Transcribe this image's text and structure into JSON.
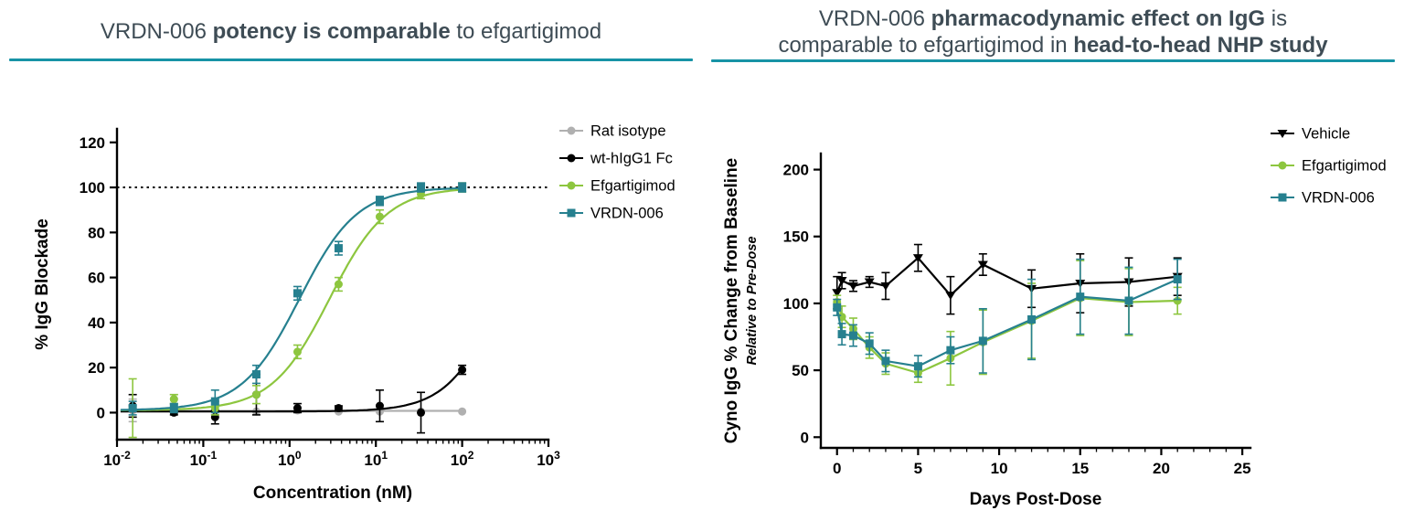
{
  "accent_color": "#1793A6",
  "title_color": "#3E4C55",
  "left_panel": {
    "title": {
      "seg1": "VRDN-006 ",
      "seg2": "potency is comparable",
      "seg3": " to efgartigimod"
    }
  },
  "right_panel": {
    "title": {
      "line1_seg1": "VRDN-006 ",
      "line1_seg2": "pharmacodynamic effect on IgG",
      "line1_seg3": " is",
      "line2_seg1": "comparable to efgartigimod in ",
      "line2_seg2": "head-to-head NHP study"
    }
  },
  "chart_data": [
    {
      "type": "scatter",
      "title": "VRDN-006 potency is comparable to efgartigimod",
      "xlabel": "Concentration (nM)",
      "ylabel": "% IgG Blockade",
      "x_scale": "log",
      "xlim": [
        0.01,
        1000
      ],
      "ylim": [
        -12,
        126
      ],
      "yticks": [
        0,
        20,
        40,
        60,
        80,
        100,
        120
      ],
      "xtick_decades": [
        -2,
        -1,
        0,
        1,
        2,
        3
      ],
      "reference_line_y": 100,
      "legend_position": "right-top",
      "series": [
        {
          "name": "Rat isotype",
          "color": "#B0B0B0",
          "marker": "circle",
          "x": [
            0.0152,
            0.0457,
            0.137,
            0.412,
            1.235,
            3.7,
            11.1,
            33.3,
            100
          ],
          "y": [
            1,
            6,
            1,
            0.5,
            1,
            0.5,
            0.5,
            0.5,
            0.5
          ],
          "err": [
            5,
            2,
            2,
            0,
            0,
            0,
            0,
            0,
            0
          ],
          "fit": {
            "type": "flat",
            "value": 0.8,
            "range": [
              0.011,
              100
            ]
          }
        },
        {
          "name": "wt-hIgG1 Fc",
          "color": "#000000",
          "marker": "circle",
          "x": [
            0.0152,
            0.0457,
            0.137,
            0.412,
            1.235,
            3.7,
            11.1,
            33.3,
            100
          ],
          "y": [
            3,
            0,
            -2,
            8,
            2,
            2,
            3,
            0,
            19
          ],
          "err": [
            5,
            1,
            3,
            9,
            2,
            1,
            7,
            9,
            2
          ],
          "fit": {
            "type": "sigmoid",
            "bottom": 0.5,
            "top": 100,
            "ec50": 280,
            "hill": 1.4,
            "range": [
              0.011,
              100
            ]
          }
        },
        {
          "name": "Efgartigimod",
          "color": "#8DC63F",
          "marker": "circle",
          "x": [
            0.0152,
            0.0457,
            0.137,
            0.412,
            1.235,
            3.7,
            11.1,
            33.3,
            100
          ],
          "y": [
            2,
            6,
            2,
            8,
            27,
            57,
            87,
            97,
            100
          ],
          "err": [
            13,
            2,
            3,
            4,
            3,
            3,
            3,
            2,
            2
          ],
          "fit": {
            "type": "sigmoid",
            "bottom": 1,
            "top": 100,
            "ec50": 2.9,
            "hill": 1.3,
            "range": [
              0.011,
              100
            ]
          }
        },
        {
          "name": "VRDN-006",
          "color": "#26808F",
          "marker": "square",
          "x": [
            0.0152,
            0.0457,
            0.137,
            0.412,
            1.235,
            3.7,
            11.1,
            33.3,
            100
          ],
          "y": [
            2,
            2,
            5,
            17,
            53,
            73,
            94,
            100,
            100
          ],
          "err": [
            3,
            2,
            5,
            4,
            3,
            3,
            2,
            2,
            2
          ],
          "fit": {
            "type": "sigmoid",
            "bottom": 1,
            "top": 100,
            "ec50": 1.3,
            "hill": 1.3,
            "range": [
              0.011,
              100
            ]
          }
        }
      ]
    },
    {
      "type": "line",
      "title": "VRDN-006 pharmacodynamic effect on IgG is comparable to efgartigimod in head-to-head NHP study",
      "xlabel": "Days Post-Dose",
      "ylabel": "Cyno IgG % Change from Baseline",
      "ylabel_sub": "Relative to Pre-Dose",
      "x_scale": "linear",
      "xlim": [
        -1,
        25.5
      ],
      "ylim": [
        -8,
        212
      ],
      "yticks": [
        0,
        50,
        100,
        150,
        200
      ],
      "xticks": [
        0,
        5,
        10,
        15,
        20,
        25
      ],
      "x_minor_step": 1,
      "legend_position": "right-top",
      "series": [
        {
          "name": "Vehicle",
          "color": "#000000",
          "marker": "triangle-down",
          "connect": true,
          "x": [
            0,
            0.3,
            1,
            2,
            3,
            5,
            7,
            9,
            12,
            15,
            18,
            21
          ],
          "y": [
            108,
            117,
            113,
            116,
            113,
            134,
            106,
            129,
            111,
            115,
            116,
            120
          ],
          "err": [
            12,
            6,
            4,
            4,
            10,
            10,
            14,
            8,
            14,
            22,
            18,
            14
          ]
        },
        {
          "name": "Efgartigimod",
          "color": "#8DC63F",
          "marker": "circle",
          "connect": true,
          "x": [
            0,
            0.3,
            1,
            2,
            3,
            5,
            7,
            9,
            12,
            15,
            18,
            21
          ],
          "y": [
            101,
            90,
            81,
            67,
            55,
            48,
            59,
            71,
            87,
            104,
            101,
            102
          ],
          "err": [
            5,
            8,
            8,
            8,
            8,
            7,
            20,
            24,
            28,
            28,
            25,
            10
          ]
        },
        {
          "name": "VRDN-006",
          "color": "#26808F",
          "marker": "square",
          "connect": true,
          "x": [
            0,
            0.3,
            1,
            2,
            3,
            5,
            7,
            9,
            12,
            15,
            18,
            21
          ],
          "y": [
            97,
            77,
            76,
            70,
            57,
            53,
            65,
            72,
            88,
            105,
            102,
            118
          ],
          "err": [
            6,
            8,
            8,
            8,
            8,
            8,
            10,
            24,
            30,
            28,
            25,
            15
          ]
        }
      ]
    }
  ]
}
